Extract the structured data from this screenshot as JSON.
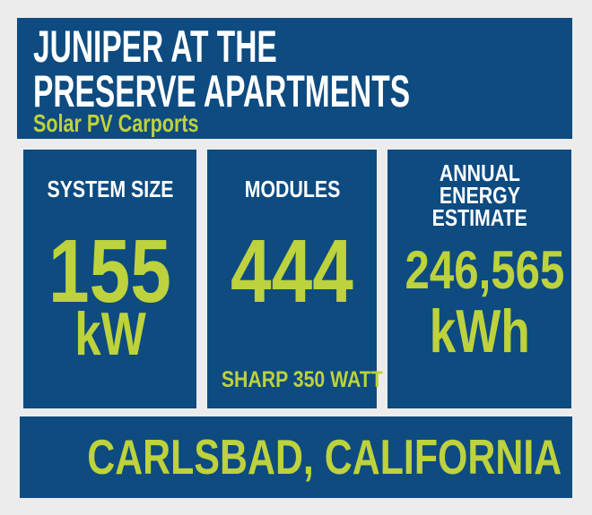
{
  "colors": {
    "blue": "#0d4b80",
    "green": "#bdd23c",
    "white": "#ffffff",
    "bg": "#ececec"
  },
  "header": {
    "title_lines": [
      "JUNIPER AT THE",
      "PRESERVE APARTMENTS"
    ],
    "subtitle": "Solar PV Carports"
  },
  "stats": [
    {
      "label_lines": [
        "SYSTEM SIZE"
      ],
      "value": "155",
      "unit": "kW"
    },
    {
      "label_lines": [
        "MODULES"
      ],
      "value": "444",
      "footnote": "SHARP 350 WATT"
    },
    {
      "label_lines": [
        "ANNUAL",
        "ENERGY",
        "ESTIMATE"
      ],
      "value": "246,565",
      "unit": "kWh"
    }
  ],
  "footer": {
    "location": "CARLSBAD, CALIFORNIA"
  }
}
